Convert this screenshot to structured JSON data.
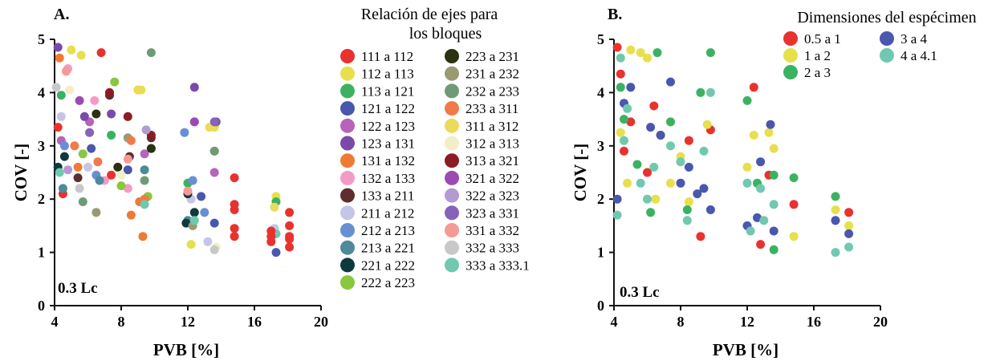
{
  "chart_data": [
    {
      "panel": "A.",
      "type": "scatter",
      "xlabel": "PVB [%]",
      "ylabel": "COV [-]",
      "xticks": [
        "4",
        "8",
        "12",
        "16",
        "20"
      ],
      "yticks": [
        "0",
        "1",
        "2",
        "3",
        "4",
        "5"
      ],
      "xlim": [
        4,
        20
      ],
      "ylim": [
        0,
        5
      ],
      "annotation": "0.3 Lc",
      "legend_title": "Relación de ejes para los bloques",
      "legend_title_lines": [
        "Relación de ejes para",
        "los bloques"
      ],
      "legend_placement": "right",
      "series": [
        {
          "name": "111 a 112",
          "color": "#e8322e",
          "x": [
            6.8,
            4.2,
            4.5,
            7.4
          ],
          "y": [
            4.75,
            3.35,
            2.1,
            2.45
          ]
        },
        {
          "name": "112 a 113",
          "color": "#e6e04e",
          "x": [
            5.6,
            5.0,
            9.2,
            13.6,
            17.3,
            12.2
          ],
          "y": [
            4.7,
            4.8,
            4.05,
            3.35,
            2.05,
            1.15
          ]
        },
        {
          "name": "113 a 121",
          "color": "#3bb262",
          "x": [
            4.4,
            7.4,
            9.8,
            12.0,
            17.3
          ],
          "y": [
            3.95,
            3.2,
            2.95,
            2.3,
            1.95
          ]
        },
        {
          "name": "121 a 122",
          "color": "#4a57ae",
          "x": [
            6.2,
            8.4,
            12.8,
            13.6,
            17.3
          ],
          "y": [
            2.95,
            2.55,
            2.05,
            1.55,
            1.0
          ]
        },
        {
          "name": "122 a 123",
          "color": "#b564b9",
          "x": [
            4.4,
            6.1,
            9.4,
            12.4,
            13.6
          ],
          "y": [
            3.1,
            3.45,
            2.85,
            3.45,
            2.5
          ]
        },
        {
          "name": "123 a 131",
          "color": "#7a4aa8",
          "x": [
            4.2,
            5.8,
            7.4,
            12.4,
            13.7
          ],
          "y": [
            4.85,
            3.55,
            3.6,
            4.1,
            3.45
          ]
        },
        {
          "name": "131 a 132",
          "color": "#ef7a33",
          "x": [
            4.3,
            5.4,
            8.6,
            9.1,
            9.3
          ],
          "y": [
            4.65,
            2.6,
            1.7,
            1.95,
            1.3
          ]
        },
        {
          "name": "132 a 133",
          "color": "#f39bc7",
          "x": [
            4.8,
            6.4,
            7.0,
            8.4
          ],
          "y": [
            4.45,
            3.85,
            2.35,
            2.2
          ]
        },
        {
          "name": "133 a 211",
          "color": "#5e2e2e",
          "x": [
            7.3,
            8.5,
            5.4,
            9.8
          ],
          "y": [
            3.95,
            2.8,
            2.4,
            3.15
          ]
        },
        {
          "name": "211 a 212",
          "color": "#c5c6e6",
          "x": [
            4.4,
            6.0,
            12.2,
            13.2,
            17.2
          ],
          "y": [
            3.55,
            2.6,
            2.0,
            1.2,
            1.45
          ]
        },
        {
          "name": "212 a 213",
          "color": "#6a8ed4",
          "x": [
            4.6,
            6.5,
            11.8,
            12.3,
            13.0
          ],
          "y": [
            3.0,
            2.45,
            3.25,
            2.35,
            1.75
          ]
        },
        {
          "name": "213 a 221",
          "color": "#4e8a99",
          "x": [
            4.5,
            6.7,
            9.4,
            12.0,
            13.6
          ],
          "y": [
            2.2,
            2.35,
            2.55,
            1.6,
            2.9
          ]
        },
        {
          "name": "221 a 222",
          "color": "#10393e",
          "x": [
            4.2,
            4.6,
            12.0,
            12.4,
            11.9
          ],
          "y": [
            2.6,
            2.8,
            2.1,
            1.75,
            1.55
          ]
        },
        {
          "name": "222 a 223",
          "color": "#8ac63e",
          "x": [
            7.6,
            5.7,
            8.0,
            9.6
          ],
          "y": [
            4.2,
            2.85,
            2.25,
            2.05
          ]
        },
        {
          "name": "223 a 231",
          "color": "#2b3210",
          "x": [
            9.8,
            7.8,
            6.5
          ],
          "y": [
            2.95,
            2.6,
            3.6
          ]
        },
        {
          "name": "231 a 232",
          "color": "#9a9a72",
          "x": [
            6.5,
            8.4,
            12.3
          ],
          "y": [
            1.75,
            3.15,
            1.5
          ]
        },
        {
          "name": "232 a 233",
          "color": "#6f9a78",
          "x": [
            9.8,
            9.4,
            13.6,
            5.7
          ],
          "y": [
            4.75,
            2.35,
            2.9,
            1.95
          ]
        },
        {
          "name": "233 a 311",
          "color": "#f07a4a",
          "x": [
            8.6,
            5.2,
            9.4,
            6.6
          ],
          "y": [
            3.1,
            3.0,
            2.0,
            2.7
          ]
        },
        {
          "name": "311 a 312",
          "color": "#ecda5a",
          "x": [
            9.0,
            13.3,
            17.2
          ],
          "y": [
            4.05,
            3.35,
            1.85
          ]
        },
        {
          "name": "312 a 313",
          "color": "#f2efc6",
          "x": [
            4.9,
            13.7,
            8.0
          ],
          "y": [
            4.05,
            1.1,
            2.45
          ]
        },
        {
          "name": "313 a 321",
          "color": "#8c1c24",
          "x": [
            7.3,
            9.8,
            8.4
          ],
          "y": [
            4.0,
            3.2,
            3.55
          ]
        },
        {
          "name": "321 a 322",
          "color": "#9b4ab1",
          "x": [
            5.5,
            12.4
          ],
          "y": [
            3.85,
            3.45
          ]
        },
        {
          "name": "322 a 323",
          "color": "#b39ad2",
          "x": [
            4.8,
            9.5
          ],
          "y": [
            2.55,
            3.3
          ]
        },
        {
          "name": "323 a 331",
          "color": "#8563b8",
          "x": [
            6.1,
            13.6
          ],
          "y": [
            3.25,
            3.45
          ]
        },
        {
          "name": "331 a 332",
          "color": "#f49a96",
          "x": [
            4.7,
            8.4,
            12.0
          ],
          "y": [
            4.4,
            2.75,
            2.15
          ]
        },
        {
          "name": "332 a 333",
          "color": "#c8c8c8",
          "x": [
            4.1,
            13.6,
            5.5
          ],
          "y": [
            4.1,
            1.05,
            2.2
          ]
        },
        {
          "name": "333 a 333.1",
          "color": "#71c8b0",
          "x": [
            4.3,
            9.4,
            12.4,
            17.3
          ],
          "y": [
            2.5,
            1.9,
            1.6,
            1.35
          ]
        }
      ],
      "extra_points": {
        "color": "#e8322e",
        "x": [
          14.8,
          14.8,
          14.8,
          14.8,
          14.8,
          18.1,
          18.1,
          18.1,
          18.1,
          18.1,
          17.0,
          17.0,
          17.0
        ],
        "y": [
          2.4,
          1.9,
          1.8,
          1.45,
          1.3,
          1.75,
          1.5,
          1.3,
          1.25,
          1.1,
          1.4,
          1.3,
          1.2
        ]
      }
    },
    {
      "panel": "B.",
      "type": "scatter",
      "xlabel": "PVB [%]",
      "ylabel": "COV [-]",
      "xticks": [
        "4",
        "8",
        "12",
        "16",
        "20"
      ],
      "yticks": [
        "0",
        "1",
        "2",
        "3",
        "4",
        "5"
      ],
      "xlim": [
        4,
        20
      ],
      "ylim": [
        0,
        5
      ],
      "annotation": "0.3 Lc",
      "legend_title": "Dimensiones del espécimen",
      "legend_placement": "top-right",
      "series": [
        {
          "name": "0.5 a 1",
          "color": "#e8322e",
          "x": [
            4.2,
            4.4,
            5.0,
            6.4,
            6.8,
            8.5,
            9.2,
            9.8,
            12.4,
            12.8,
            13.3,
            14.8,
            18.1,
            4.6,
            6.0
          ],
          "y": [
            4.85,
            4.35,
            3.45,
            3.75,
            3.2,
            3.1,
            1.3,
            3.3,
            4.1,
            1.15,
            2.45,
            1.9,
            1.75,
            2.9,
            2.5
          ]
        },
        {
          "name": "1 a 2",
          "color": "#e6e04e",
          "x": [
            5.0,
            5.6,
            6.0,
            4.4,
            7.4,
            8.5,
            9.6,
            12.0,
            12.4,
            13.3,
            13.6,
            14.8,
            17.3,
            18.1,
            4.8,
            6.5,
            8.0
          ],
          "y": [
            4.8,
            4.75,
            4.65,
            3.25,
            2.3,
            1.95,
            3.4,
            2.6,
            3.2,
            3.25,
            2.95,
            1.3,
            1.8,
            1.5,
            2.3,
            2.0,
            2.8
          ]
        },
        {
          "name": "2 a 3",
          "color": "#3bb262",
          "x": [
            4.4,
            6.6,
            7.4,
            9.2,
            9.8,
            12.0,
            13.6,
            14.8,
            17.3,
            4.6,
            6.2,
            8.4,
            12.6,
            13.6,
            5.4
          ],
          "y": [
            4.1,
            4.75,
            3.45,
            4.0,
            4.75,
            3.85,
            2.45,
            2.4,
            2.05,
            3.5,
            1.75,
            1.8,
            2.3,
            1.05,
            2.65
          ]
        },
        {
          "name": "3 a 4",
          "color": "#4a57ae",
          "x": [
            4.2,
            5.0,
            6.2,
            7.4,
            8.5,
            9.4,
            9.8,
            12.0,
            12.8,
            13.4,
            17.3,
            18.1,
            4.6,
            6.8,
            8.0,
            9.0,
            12.6,
            13.6
          ],
          "y": [
            2.0,
            4.1,
            3.35,
            4.2,
            2.6,
            2.2,
            1.8,
            1.5,
            2.7,
            3.4,
            1.6,
            1.35,
            3.8,
            3.2,
            2.3,
            2.1,
            1.65,
            1.4
          ]
        },
        {
          "name": "4 a 4.1",
          "color": "#71c8b0",
          "x": [
            4.2,
            4.8,
            5.6,
            6.4,
            7.4,
            8.4,
            9.4,
            9.8,
            12.2,
            12.8,
            13.6,
            17.3,
            18.1,
            4.6,
            6.0,
            8.0,
            12.0,
            13.0,
            4.4
          ],
          "y": [
            1.7,
            3.7,
            2.3,
            2.6,
            3.0,
            1.6,
            2.9,
            4.0,
            1.4,
            2.2,
            1.9,
            1.0,
            1.1,
            3.1,
            2.0,
            2.7,
            2.3,
            1.6,
            4.65
          ]
        }
      ]
    }
  ]
}
